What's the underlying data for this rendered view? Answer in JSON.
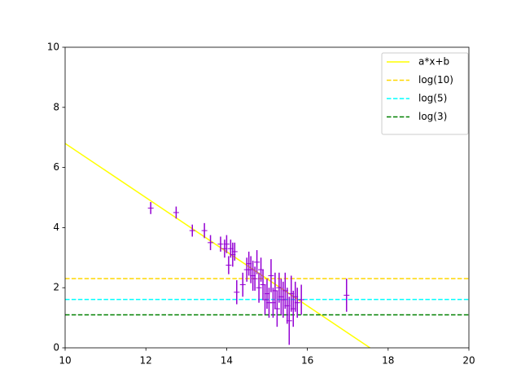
{
  "chart_data": {
    "type": "line",
    "xlim": [
      10,
      20
    ],
    "ylim": [
      0,
      10
    ],
    "xticks": [
      10,
      12,
      14,
      16,
      18,
      20
    ],
    "yticks": [
      0,
      2,
      4,
      6,
      8,
      10
    ],
    "grid": false,
    "legend": "upper right",
    "series": [
      {
        "name": "a*x+b",
        "color": "#ffff00",
        "dashed": false,
        "x": [
          10,
          17.55
        ],
        "values": [
          6.8,
          0
        ]
      },
      {
        "name": "log(10)",
        "color": "#ffd700",
        "dashed": true,
        "x": [
          10,
          20
        ],
        "values": [
          2.303,
          2.303
        ]
      },
      {
        "name": "log(5)",
        "color": "#00ffff",
        "dashed": true,
        "x": [
          10,
          20
        ],
        "values": [
          1.609,
          1.609
        ]
      },
      {
        "name": "log(3)",
        "color": "#008000",
        "dashed": true,
        "x": [
          10,
          20
        ],
        "values": [
          1.099,
          1.099
        ]
      }
    ],
    "errorbar": {
      "color": "#9400d3",
      "x": [
        12.12,
        12.75,
        13.15,
        13.45,
        13.6,
        13.85,
        13.95,
        14.0,
        14.05,
        14.1,
        14.15,
        14.2,
        14.25,
        14.4,
        14.5,
        14.55,
        14.6,
        14.65,
        14.7,
        14.75,
        14.8,
        14.85,
        14.9,
        14.95,
        15.0,
        15.05,
        15.1,
        15.15,
        15.2,
        15.25,
        15.3,
        15.35,
        15.4,
        15.45,
        15.5,
        15.55,
        15.6,
        15.65,
        15.7,
        15.75,
        15.85,
        16.97
      ],
      "values": [
        4.65,
        4.5,
        3.9,
        3.9,
        3.5,
        3.45,
        3.3,
        3.45,
        2.75,
        3.3,
        3.1,
        3.2,
        1.85,
        2.1,
        2.6,
        2.8,
        2.6,
        2.4,
        2.3,
        2.85,
        2.0,
        2.6,
        2.1,
        1.6,
        1.8,
        1.5,
        2.4,
        1.5,
        1.9,
        1.3,
        2.0,
        1.7,
        1.6,
        1.9,
        1.4,
        0.9,
        1.8,
        1.3,
        1.7,
        1.5,
        1.6,
        1.75
      ],
      "errors": [
        0.2,
        0.2,
        0.2,
        0.25,
        0.25,
        0.25,
        0.3,
        0.3,
        0.3,
        0.3,
        0.4,
        0.3,
        0.4,
        0.4,
        0.4,
        0.4,
        0.45,
        0.5,
        0.4,
        0.4,
        0.5,
        0.4,
        0.5,
        0.5,
        0.5,
        0.5,
        0.55,
        0.5,
        0.6,
        0.6,
        0.5,
        0.6,
        0.6,
        0.6,
        0.6,
        0.8,
        0.6,
        0.6,
        0.5,
        0.5,
        0.5,
        0.55
      ]
    }
  }
}
